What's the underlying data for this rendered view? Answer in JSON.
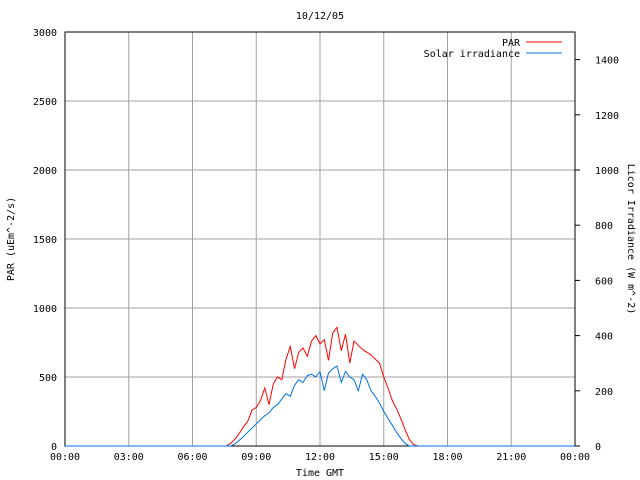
{
  "chart_data": {
    "type": "line",
    "title": "10/12/05",
    "xlabel": "Time GMT",
    "ylabel": "PAR (uEm^-2/s)",
    "y2label": "Licor Irradiance (W m^-2)",
    "xlim": [
      0,
      24
    ],
    "ylim": [
      0,
      3000
    ],
    "y2lim": [
      0,
      1500
    ],
    "x_tick_labels": [
      "00:00",
      "03:00",
      "06:00",
      "09:00",
      "12:00",
      "15:00",
      "18:00",
      "21:00",
      "00:00"
    ],
    "y_tick_labels": [
      "0",
      "500",
      "1000",
      "1500",
      "2000",
      "2500",
      "3000"
    ],
    "y2_tick_labels": [
      "0",
      "200",
      "400",
      "600",
      "800",
      "1000",
      "1200",
      "1400"
    ],
    "grid": true,
    "legend_position": "top-right",
    "series": [
      {
        "name": "PAR",
        "color": "#ff0000",
        "axis": "left",
        "x": [
          0,
          7.6,
          7.8,
          8.0,
          8.2,
          8.4,
          8.6,
          8.8,
          9.0,
          9.2,
          9.4,
          9.6,
          9.8,
          10.0,
          10.2,
          10.4,
          10.6,
          10.8,
          11.0,
          11.2,
          11.4,
          11.6,
          11.8,
          12.0,
          12.2,
          12.4,
          12.6,
          12.8,
          13.0,
          13.2,
          13.4,
          13.6,
          13.8,
          14.0,
          14.2,
          14.4,
          14.6,
          14.8,
          15.0,
          15.2,
          15.4,
          15.6,
          15.8,
          16.0,
          16.2,
          16.4,
          16.6,
          24
        ],
        "y": [
          0,
          0,
          20,
          50,
          90,
          140,
          180,
          260,
          280,
          330,
          420,
          300,
          450,
          500,
          480,
          630,
          720,
          560,
          680,
          710,
          650,
          760,
          800,
          740,
          770,
          620,
          820,
          860,
          690,
          810,
          600,
          760,
          730,
          700,
          680,
          660,
          630,
          600,
          500,
          420,
          330,
          270,
          200,
          120,
          50,
          10,
          0,
          0
        ]
      },
      {
        "name": "Solar irradiance",
        "color": "#0070e0",
        "axis": "right",
        "x": [
          0,
          7.8,
          8.0,
          8.2,
          8.4,
          8.6,
          8.8,
          9.0,
          9.2,
          9.4,
          9.6,
          9.8,
          10.0,
          10.2,
          10.4,
          10.6,
          10.8,
          11.0,
          11.2,
          11.4,
          11.6,
          11.8,
          12.0,
          12.2,
          12.4,
          12.6,
          12.8,
          13.0,
          13.2,
          13.4,
          13.6,
          13.8,
          14.0,
          14.2,
          14.4,
          14.6,
          14.8,
          15.0,
          15.2,
          15.4,
          15.6,
          15.8,
          16.0,
          16.2,
          24
        ],
        "y": [
          0,
          0,
          8,
          20,
          35,
          50,
          65,
          80,
          95,
          110,
          120,
          140,
          150,
          170,
          190,
          180,
          220,
          240,
          230,
          255,
          260,
          250,
          270,
          200,
          265,
          280,
          290,
          230,
          270,
          250,
          240,
          200,
          260,
          240,
          200,
          180,
          155,
          125,
          100,
          75,
          50,
          28,
          10,
          0,
          0
        ]
      }
    ]
  }
}
